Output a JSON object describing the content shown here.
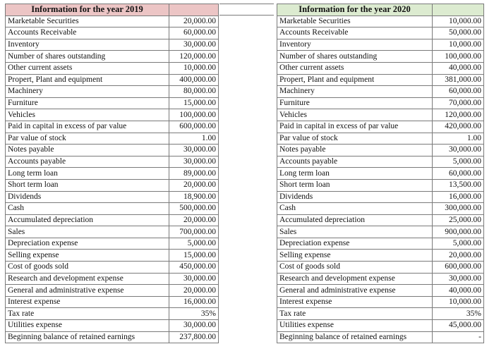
{
  "table2019": {
    "title": "Information for the year 2019",
    "rows": [
      {
        "label": "Marketable Securities",
        "value": "20,000.00"
      },
      {
        "label": "Accounts Receivable",
        "value": "60,000.00"
      },
      {
        "label": "Inventory",
        "value": "30,000.00"
      },
      {
        "label": "Number of shares outstanding",
        "value": "120,000.00"
      },
      {
        "label": "Other current assets",
        "value": "10,000.00"
      },
      {
        "label": "Propert, Plant and equipment",
        "value": "400,000.00"
      },
      {
        "label": "Machinery",
        "value": "80,000.00"
      },
      {
        "label": "Furniture",
        "value": "15,000.00"
      },
      {
        "label": "Vehicles",
        "value": "100,000.00"
      },
      {
        "label": "Paid in capital in excess of par value",
        "value": "600,000.00"
      },
      {
        "label": "Par value of stock",
        "value": "1.00"
      },
      {
        "label": "Notes payable",
        "value": "30,000.00"
      },
      {
        "label": "Accounts payable",
        "value": "30,000.00"
      },
      {
        "label": "Long term loan",
        "value": "89,000.00"
      },
      {
        "label": "Short term loan",
        "value": "20,000.00"
      },
      {
        "label": "Dividends",
        "value": "18,900.00"
      },
      {
        "label": "Cash",
        "value": "500,000.00"
      },
      {
        "label": "Accumulated depreciation",
        "value": "20,000.00"
      },
      {
        "label": "Sales",
        "value": "700,000.00"
      },
      {
        "label": "Depreciation expense",
        "value": "5,000.00"
      },
      {
        "label": "Selling expense",
        "value": "15,000.00"
      },
      {
        "label": "Cost of goods sold",
        "value": "450,000.00"
      },
      {
        "label": "Research and development expense",
        "value": "30,000.00"
      },
      {
        "label": "General and administrative expense",
        "value": "20,000.00"
      },
      {
        "label": "Interest expense",
        "value": "16,000.00"
      },
      {
        "label": "Tax rate",
        "value": "35%"
      },
      {
        "label": "Utilities expense",
        "value": "30,000.00"
      },
      {
        "label": "Beginning balance of retained earnings",
        "value": "237,800.00"
      }
    ]
  },
  "table2020": {
    "title": "Information for the year 2020",
    "rows": [
      {
        "label": "Marketable Securities",
        "value": "10,000.00"
      },
      {
        "label": "Accounts Receivable",
        "value": "50,000.00"
      },
      {
        "label": "Inventory",
        "value": "10,000.00"
      },
      {
        "label": "Number of shares outstanding",
        "value": "100,000.00"
      },
      {
        "label": "Other current assets",
        "value": "40,000.00"
      },
      {
        "label": "Propert, Plant and equipment",
        "value": "381,000.00"
      },
      {
        "label": "Machinery",
        "value": "60,000.00"
      },
      {
        "label": "Furniture",
        "value": "70,000.00"
      },
      {
        "label": "Vehicles",
        "value": "120,000.00"
      },
      {
        "label": "Paid in capital in excess of par value",
        "value": "420,000.00"
      },
      {
        "label": "Par value of stock",
        "value": "1.00"
      },
      {
        "label": "Notes payable",
        "value": "30,000.00"
      },
      {
        "label": "Accounts payable",
        "value": "5,000.00"
      },
      {
        "label": "Long term loan",
        "value": "60,000.00"
      },
      {
        "label": "Short term loan",
        "value": "13,500.00"
      },
      {
        "label": "Dividends",
        "value": "16,000.00"
      },
      {
        "label": "Cash",
        "value": "300,000.00"
      },
      {
        "label": "Accumulated depreciation",
        "value": "25,000.00"
      },
      {
        "label": "Sales",
        "value": "900,000.00"
      },
      {
        "label": "Depreciation expense",
        "value": "5,000.00"
      },
      {
        "label": "Selling expense",
        "value": "20,000.00"
      },
      {
        "label": "Cost of goods sold",
        "value": "600,000.00"
      },
      {
        "label": "Research and development expense",
        "value": "30,000.00"
      },
      {
        "label": "General and administrative expense",
        "value": "40,000.00"
      },
      {
        "label": "Interest expense",
        "value": "10,000.00"
      },
      {
        "label": "Tax rate",
        "value": "35%"
      },
      {
        "label": "Utilities expense",
        "value": "45,000.00"
      },
      {
        "label": "Beginning balance of retained earnings",
        "value": "-"
      }
    ]
  }
}
